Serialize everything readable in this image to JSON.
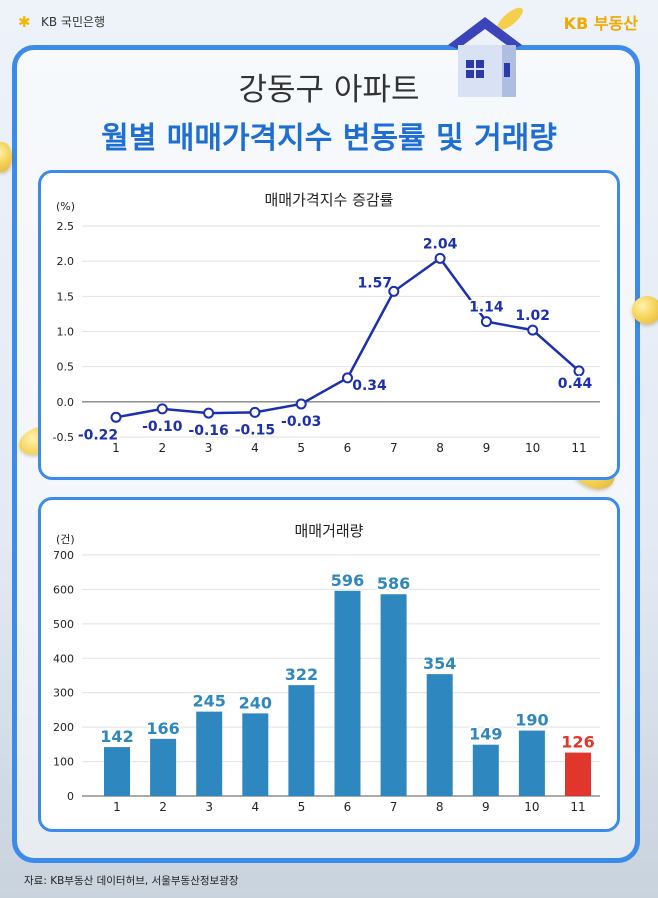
{
  "header": {
    "bank_logo": "KB 국민은행",
    "brand": "KB 부동산"
  },
  "title": {
    "line1": "강동구 아파트",
    "line2": "월별 매매가격지수 변동률 및 거래량"
  },
  "source": "자료: KB부동산 데이터허브, 서울부동산정보광장",
  "colors": {
    "accent": "#3d8be8",
    "title_blue": "#1f6ed4",
    "bar": "#2f87c0",
    "bar_highlight": "#e0362c",
    "line": "#1c2fb0"
  },
  "chart_data": [
    {
      "type": "line",
      "title": "매매가격지수 증감률",
      "unit": "(%)",
      "categories": [
        "1",
        "2",
        "3",
        "4",
        "5",
        "6",
        "7",
        "8",
        "9",
        "10",
        "11"
      ],
      "values": [
        -0.22,
        -0.1,
        -0.16,
        -0.15,
        -0.03,
        0.34,
        1.57,
        2.04,
        1.14,
        1.02,
        0.44
      ],
      "labels": [
        "-0.22",
        "-0.10",
        "-0.16",
        "-0.15",
        "-0.03",
        "0.34",
        "1.57",
        "2.04",
        "1.14",
        "1.02",
        "0.44"
      ],
      "yticks": [
        "2.5",
        "2.0",
        "1.5",
        "1.0",
        "0.5",
        "0.0",
        "-0.5"
      ],
      "ylim": [
        -0.5,
        2.5
      ],
      "grid": true
    },
    {
      "type": "bar",
      "title": "매매거래량",
      "unit": "(건)",
      "categories": [
        "1",
        "2",
        "3",
        "4",
        "5",
        "6",
        "7",
        "8",
        "9",
        "10",
        "11"
      ],
      "values": [
        142,
        166,
        245,
        240,
        322,
        596,
        586,
        354,
        149,
        190,
        126
      ],
      "yticks": [
        "700",
        "600",
        "500",
        "400",
        "300",
        "200",
        "100",
        "0"
      ],
      "ylim": [
        0,
        700
      ],
      "highlight_index": 10,
      "grid": true
    }
  ]
}
